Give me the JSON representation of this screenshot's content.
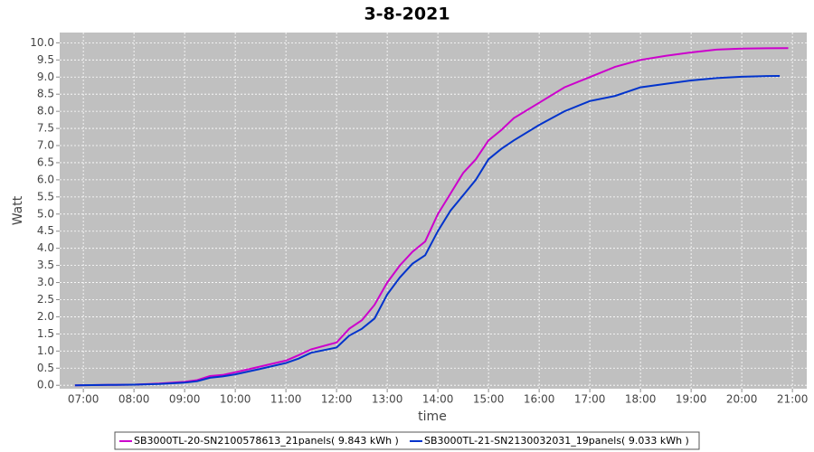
{
  "chart_data": {
    "type": "line",
    "title": "3-8-2021",
    "x_label": "time",
    "y_label": "Watt",
    "xlim": [
      "06:32",
      "21:17"
    ],
    "xticks": [
      "07:00",
      "08:00",
      "09:00",
      "10:00",
      "11:00",
      "12:00",
      "13:00",
      "14:00",
      "15:00",
      "16:00",
      "17:00",
      "18:00",
      "19:00",
      "20:00",
      "21:00"
    ],
    "ylim": [
      -0.1,
      10.3
    ],
    "yticks": [
      {
        "value": 0,
        "label": "0.0"
      },
      {
        "value": 0.5,
        "label": "0.5"
      },
      {
        "value": 1,
        "label": "1.0"
      },
      {
        "value": 1.5,
        "label": "1.5"
      },
      {
        "value": 2,
        "label": "2.0"
      },
      {
        "value": 2.5,
        "label": "2.5"
      },
      {
        "value": 3,
        "label": "3.0"
      },
      {
        "value": 3.5,
        "label": "3.5"
      },
      {
        "value": 4,
        "label": "4.0"
      },
      {
        "value": 4.5,
        "label": "4.5"
      },
      {
        "value": 5,
        "label": "5.0"
      },
      {
        "value": 5.5,
        "label": "5.5"
      },
      {
        "value": 6,
        "label": "6.0"
      },
      {
        "value": 6.5,
        "label": "6.5"
      },
      {
        "value": 7,
        "label": "7.0"
      },
      {
        "value": 7.5,
        "label": "7.5"
      },
      {
        "value": 8,
        "label": "8.0"
      },
      {
        "value": 8.5,
        "label": "8.5"
      },
      {
        "value": 9,
        "label": "9.0"
      },
      {
        "value": 9.5,
        "label": "9.5"
      },
      {
        "value": 10,
        "label": "10.0"
      }
    ],
    "grid": true,
    "series": [
      {
        "name": "SB3000TL-20-SN2100578613_21panels( 9.843 kWh )",
        "color": "#cc00cc",
        "x": [
          "06:50",
          "07:30",
          "08:00",
          "08:30",
          "09:00",
          "09:15",
          "09:30",
          "09:45",
          "10:00",
          "10:30",
          "11:00",
          "11:15",
          "11:30",
          "12:00",
          "12:15",
          "12:30",
          "12:45",
          "13:00",
          "13:15",
          "13:30",
          "13:45",
          "14:00",
          "14:15",
          "14:30",
          "14:45",
          "15:00",
          "15:15",
          "15:30",
          "16:00",
          "16:30",
          "17:00",
          "17:30",
          "18:00",
          "18:30",
          "19:00",
          "19:30",
          "20:00",
          "20:30",
          "20:55"
        ],
        "values": [
          0,
          0.01,
          0.02,
          0.05,
          0.1,
          0.15,
          0.27,
          0.3,
          0.38,
          0.55,
          0.72,
          0.88,
          1.05,
          1.25,
          1.65,
          1.9,
          2.35,
          3.0,
          3.5,
          3.9,
          4.2,
          5.0,
          5.6,
          6.2,
          6.6,
          7.15,
          7.45,
          7.8,
          8.25,
          8.7,
          9.0,
          9.3,
          9.5,
          9.62,
          9.72,
          9.8,
          9.83,
          9.84,
          9.843
        ]
      },
      {
        "name": "SB3000TL-21-SN2130032031_19panels( 9.033 kWh )",
        "color": "#0033cc",
        "x": [
          "06:50",
          "07:30",
          "08:00",
          "08:30",
          "09:00",
          "09:15",
          "09:30",
          "09:45",
          "10:00",
          "10:30",
          "11:00",
          "11:15",
          "11:30",
          "12:00",
          "12:15",
          "12:30",
          "12:45",
          "13:00",
          "13:15",
          "13:30",
          "13:45",
          "14:00",
          "14:15",
          "14:30",
          "14:45",
          "15:00",
          "15:15",
          "15:30",
          "16:00",
          "16:30",
          "17:00",
          "17:30",
          "18:00",
          "18:30",
          "19:00",
          "19:30",
          "20:00",
          "20:30",
          "20:45"
        ],
        "values": [
          0,
          0.01,
          0.02,
          0.04,
          0.08,
          0.12,
          0.22,
          0.26,
          0.32,
          0.48,
          0.65,
          0.78,
          0.95,
          1.1,
          1.45,
          1.65,
          1.95,
          2.65,
          3.15,
          3.55,
          3.8,
          4.5,
          5.1,
          5.55,
          6.0,
          6.6,
          6.9,
          7.15,
          7.6,
          8.0,
          8.3,
          8.45,
          8.7,
          8.8,
          8.9,
          8.97,
          9.01,
          9.03,
          9.033
        ]
      }
    ]
  }
}
